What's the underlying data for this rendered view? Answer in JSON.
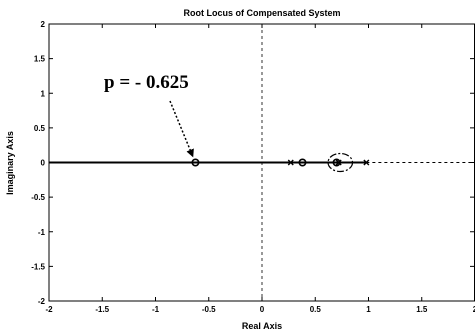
{
  "chart_data": {
    "type": "line",
    "title": "Root Locus of Compensated System",
    "xlabel": "Real Axis",
    "ylabel": "Imaginary Axis",
    "xlim": [
      -2,
      2
    ],
    "ylim": [
      -2,
      2
    ],
    "x_ticks": [
      "-2",
      "-1.5",
      "-1",
      "-0.5",
      "0",
      "0.5",
      "1",
      "1.5",
      "2"
    ],
    "y_ticks": [
      "2",
      "1.5",
      "1",
      "0.5",
      "0",
      "-0.5",
      "-1",
      "-1.5",
      "-2"
    ],
    "grid": false,
    "locus_segments": [
      {
        "x": [
          -2,
          0.98
        ],
        "y": [
          0,
          0
        ],
        "style": "solid"
      },
      {
        "x": [
          0.98,
          2
        ],
        "y": [
          0,
          0
        ],
        "style": "dashed"
      }
    ],
    "poles": [
      {
        "x": 0.27,
        "y": 0
      },
      {
        "x": 0.72,
        "y": 0
      },
      {
        "x": 0.98,
        "y": 0
      }
    ],
    "zeros": [
      {
        "x": -0.625,
        "y": 0
      },
      {
        "x": 0.38,
        "y": 0
      },
      {
        "x": 0.7,
        "y": 0
      }
    ],
    "small_loop": {
      "x": [
        0.62,
        0.85
      ],
      "y": [
        -0.13,
        0.13
      ]
    },
    "annotation": {
      "text": "p = - 0.625",
      "target_x": -0.625,
      "target_y": 0
    }
  }
}
